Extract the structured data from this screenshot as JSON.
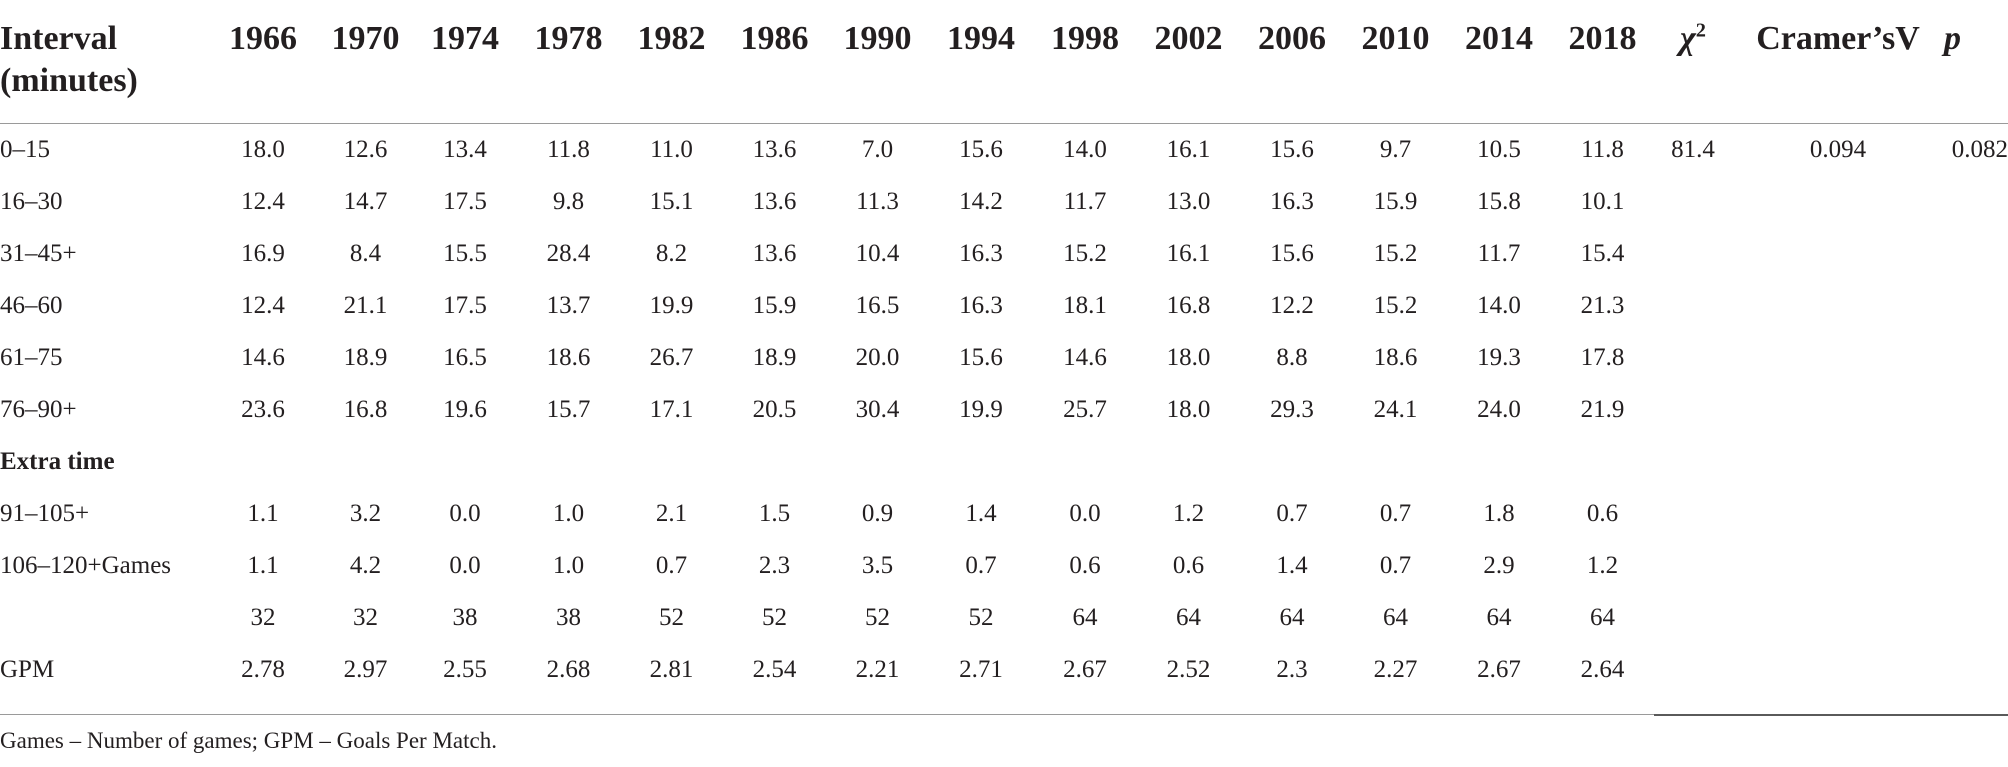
{
  "table": {
    "header": {
      "interval": "Interval (minutes)",
      "years": [
        "1966",
        "1970",
        "1974",
        "1978",
        "1982",
        "1986",
        "1990",
        "1994",
        "1998",
        "2002",
        "2006",
        "2010",
        "2014",
        "2018"
      ],
      "chi_symbol": "χ",
      "chi_sup": "2",
      "cramers": "Cramer’sV",
      "p": "p"
    },
    "rows": [
      {
        "label": "0–15",
        "values": [
          "18.0",
          "12.6",
          "13.4",
          "11.8",
          "11.0",
          "13.6",
          "7.0",
          "15.6",
          "14.0",
          "16.1",
          "15.6",
          "9.7",
          "10.5",
          "11.8"
        ],
        "chi2": "81.4",
        "cramers": "0.094",
        "p": "0.082"
      },
      {
        "label": "16–30",
        "values": [
          "12.4",
          "14.7",
          "17.5",
          "9.8",
          "15.1",
          "13.6",
          "11.3",
          "14.2",
          "11.7",
          "13.0",
          "16.3",
          "15.9",
          "15.8",
          "10.1"
        ]
      },
      {
        "label": "31–45+",
        "values": [
          "16.9",
          "8.4",
          "15.5",
          "28.4",
          "8.2",
          "13.6",
          "10.4",
          "16.3",
          "15.2",
          "16.1",
          "15.6",
          "15.2",
          "11.7",
          "15.4"
        ]
      },
      {
        "label": "46–60",
        "values": [
          "12.4",
          "21.1",
          "17.5",
          "13.7",
          "19.9",
          "15.9",
          "16.5",
          "16.3",
          "18.1",
          "16.8",
          "12.2",
          "15.2",
          "14.0",
          "21.3"
        ]
      },
      {
        "label": "61–75",
        "values": [
          "14.6",
          "18.9",
          "16.5",
          "18.6",
          "26.7",
          "18.9",
          "20.0",
          "15.6",
          "14.6",
          "18.0",
          "8.8",
          "18.6",
          "19.3",
          "17.8"
        ]
      },
      {
        "label": "76–90+",
        "values": [
          "23.6",
          "16.8",
          "19.6",
          "15.7",
          "17.1",
          "20.5",
          "30.4",
          "19.9",
          "25.7",
          "18.0",
          "29.3",
          "24.1",
          "24.0",
          "21.9"
        ]
      },
      {
        "label": "Extra time",
        "section": true,
        "values": []
      },
      {
        "label": "91–105+",
        "values": [
          "1.1",
          "3.2",
          "0.0",
          "1.0",
          "2.1",
          "1.5",
          "0.9",
          "1.4",
          "0.0",
          "1.2",
          "0.7",
          "0.7",
          "1.8",
          "0.6"
        ]
      },
      {
        "label": "106–120+Games",
        "values": [
          "1.1",
          "4.2",
          "0.0",
          "1.0",
          "0.7",
          "2.3",
          "3.5",
          "0.7",
          "0.6",
          "0.6",
          "1.4",
          "0.7",
          "2.9",
          "1.2"
        ]
      },
      {
        "label": "",
        "values": [
          "32",
          "32",
          "38",
          "38",
          "52",
          "52",
          "52",
          "52",
          "64",
          "64",
          "64",
          "64",
          "64",
          "64"
        ]
      },
      {
        "label": "GPM",
        "values": [
          "2.78",
          "2.97",
          "2.55",
          "2.68",
          "2.81",
          "2.54",
          "2.21",
          "2.71",
          "2.67",
          "2.52",
          "2.3",
          "2.27",
          "2.67",
          "2.64"
        ]
      }
    ]
  },
  "footnote": "Games – Number of games; GPM – Goals Per Match."
}
